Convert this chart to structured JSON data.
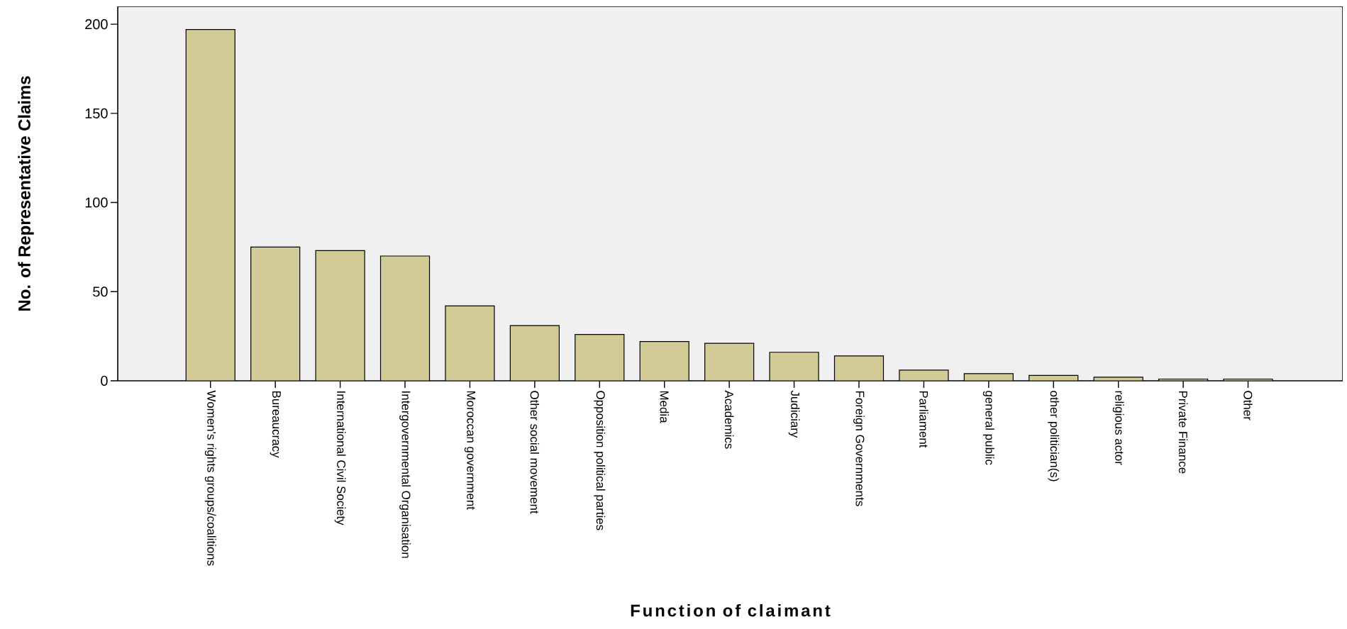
{
  "chart_data": {
    "type": "bar",
    "xlabel": "Function of claimant",
    "ylabel": "No. of Representative Claims",
    "categories": [
      "Women's rights groups/coalitions",
      "Bureaucracy",
      "International Civil Society",
      "Intergovernmental Organisation",
      "Moroccan government",
      "Other social movement",
      "Opposition political parties",
      "Media",
      "Academics",
      "Judiciary",
      "Foreign Governments",
      "Parliament",
      "general public",
      "other politician(s)",
      "religious actor",
      "Private Finance",
      "Other"
    ],
    "values": [
      197,
      75,
      73,
      70,
      42,
      31,
      26,
      22,
      21,
      16,
      14,
      6,
      4,
      3,
      2,
      1,
      1
    ],
    "color": "#d2cb96",
    "ylim": [
      0,
      210
    ],
    "yticks": [
      0,
      50,
      100,
      150,
      200
    ]
  }
}
